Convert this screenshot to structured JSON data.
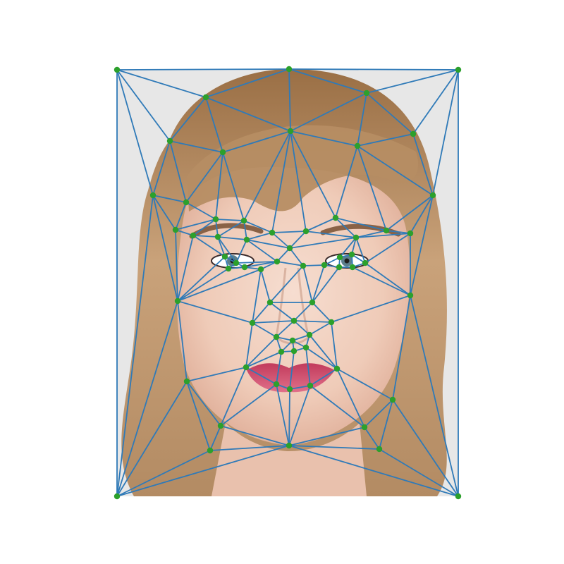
{
  "figure": {
    "style": {
      "edge_color": "#2f7ab8",
      "point_color": "#2ca02c",
      "hair_color_light": "#d2b48c",
      "hair_color_dark": "#7a5a3a",
      "skin_color": "#f2d2c0",
      "lip_color": "#d24a6a",
      "background_color": "#ffffff",
      "photo_background": "#e6e6e6"
    },
    "content": {
      "subject": "portrait-face-photo",
      "overlay": "triangulation-mesh-with-landmark-points"
    }
  }
}
